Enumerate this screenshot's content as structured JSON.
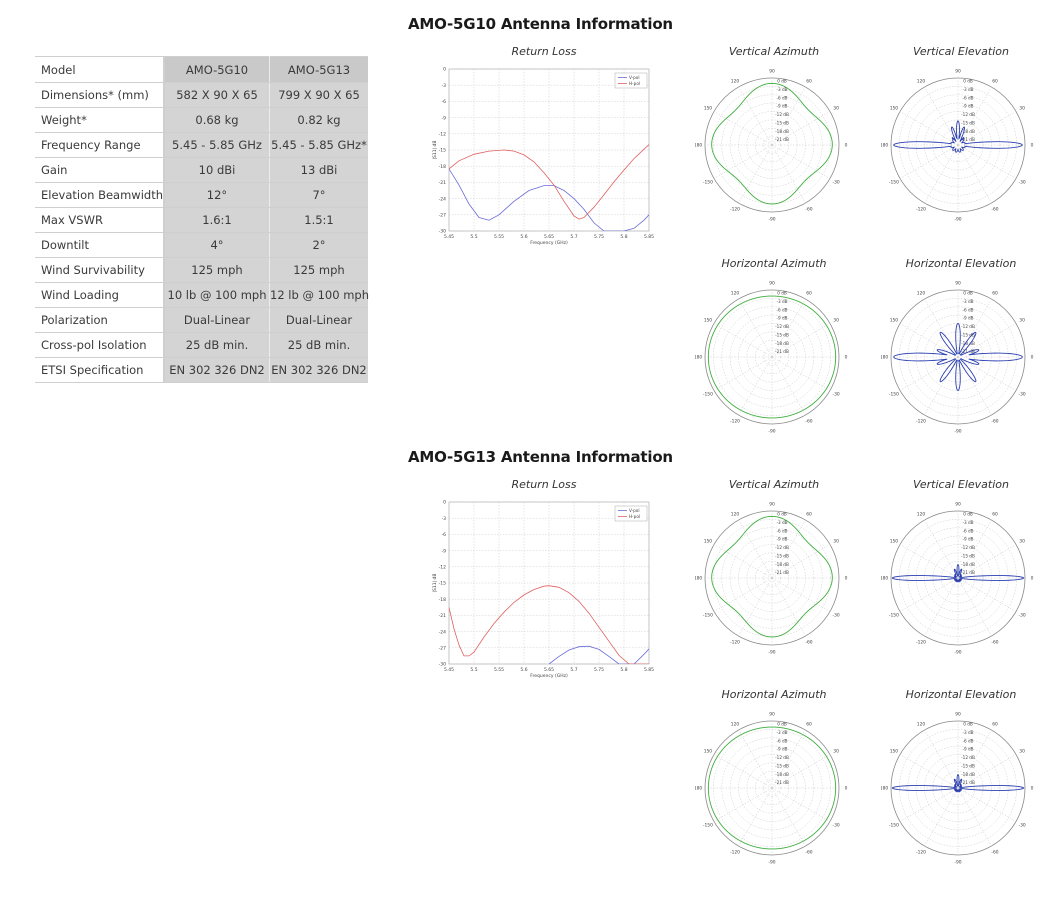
{
  "spec_table": {
    "rows": [
      [
        "Model",
        "AMO-5G10",
        "AMO-5G13"
      ],
      [
        "Dimensions* (mm)",
        "582 X 90 X 65",
        "799 X 90 X 65"
      ],
      [
        "Weight*",
        "0.68 kg",
        "0.82 kg"
      ],
      [
        "Frequency Range",
        "5.45 - 5.85 GHz",
        "5.45 - 5.85 GHz*"
      ],
      [
        "Gain",
        "10 dBi",
        "13 dBi"
      ],
      [
        "Elevation Beamwidth",
        "12°",
        "7°"
      ],
      [
        "Max VSWR",
        "1.6:1",
        "1.5:1"
      ],
      [
        "Downtilt",
        "4°",
        "2°"
      ],
      [
        "Wind Survivability",
        "125 mph",
        "125 mph"
      ],
      [
        "Wind Loading",
        "10 lb @ 100 mph",
        "12 lb @ 100 mph"
      ],
      [
        "Polarization",
        "Dual-Linear",
        "Dual-Linear"
      ],
      [
        "Cross-pol Isolation",
        "25 dB min.",
        "25 dB min."
      ],
      [
        "ETSI Specification",
        "EN 302 326 DN2",
        "EN 302 326 DN2"
      ]
    ]
  },
  "sections": [
    {
      "heading": "AMO-5G10 Antenna Information",
      "titles": {
        "return_loss": "Return Loss",
        "vertical_azimuth": "Vertical Azimuth",
        "vertical_elevation": "Vertical Elevation",
        "horizontal_azimuth": "Horizontal Azimuth",
        "horizontal_elevation": "Horizontal Elevation"
      }
    },
    {
      "heading": "AMO-5G13 Antenna Information",
      "titles": {
        "return_loss": "Return Loss",
        "vertical_azimuth": "Vertical Azimuth",
        "vertical_elevation": "Vertical Elevation",
        "horizontal_azimuth": "Horizontal Azimuth",
        "horizontal_elevation": "Horizontal Elevation"
      }
    }
  ],
  "chart_data": [
    {
      "id": "return-loss-5g10",
      "type": "line",
      "title": "Return Loss",
      "xlabel": "Frequency (GHz)",
      "ylabel": "|S11| dB",
      "xlim": [
        5.45,
        5.85
      ],
      "ylim": [
        -30,
        0
      ],
      "xticks": [
        "5.45",
        "5.5",
        "5.55",
        "5.6",
        "5.65",
        "5.7",
        "5.75",
        "5.8",
        "5.85"
      ],
      "yticks": [
        "0",
        "-3",
        "-6",
        "-9",
        "-12",
        "-15",
        "-18",
        "-21",
        "-24",
        "-27",
        "-30"
      ],
      "legend": [
        "V-pol",
        "H-pol"
      ],
      "series": [
        {
          "name": "V-pol",
          "color": "#6b6bd6",
          "x": [
            5.45,
            5.47,
            5.49,
            5.51,
            5.53,
            5.55,
            5.58,
            5.61,
            5.64,
            5.66,
            5.68,
            5.7,
            5.72,
            5.74,
            5.76,
            5.78,
            5.8,
            5.82,
            5.84,
            5.85
          ],
          "y": [
            -18.5,
            -21.5,
            -25,
            -27.5,
            -28,
            -27,
            -24.5,
            -22.5,
            -21.6,
            -21.6,
            -22.5,
            -24,
            -26,
            -28.5,
            -30,
            -30,
            -30,
            -29.5,
            -28,
            -27
          ]
        },
        {
          "name": "H-pol",
          "color": "#e06060",
          "x": [
            5.45,
            5.47,
            5.5,
            5.53,
            5.56,
            5.58,
            5.6,
            5.62,
            5.64,
            5.66,
            5.68,
            5.7,
            5.71,
            5.72,
            5.74,
            5.76,
            5.78,
            5.8,
            5.82,
            5.85
          ],
          "y": [
            -18.5,
            -17,
            -15.8,
            -15.2,
            -15,
            -15.2,
            -15.9,
            -17.2,
            -19.2,
            -21.5,
            -24.5,
            -27.2,
            -27.8,
            -27.5,
            -25.6,
            -23.3,
            -20.9,
            -18.7,
            -16.6,
            -14
          ]
        }
      ]
    },
    {
      "id": "return-loss-5g13",
      "type": "line",
      "title": "Return Loss",
      "xlabel": "Frequency (GHz)",
      "ylabel": "|S11| dB",
      "xlim": [
        5.45,
        5.85
      ],
      "ylim": [
        -30,
        0
      ],
      "xticks": [
        "5.45",
        "5.5",
        "5.55",
        "5.6",
        "5.65",
        "5.7",
        "5.75",
        "5.8",
        "5.85"
      ],
      "yticks": [
        "0",
        "-3",
        "-6",
        "-9",
        "-12",
        "-15",
        "-18",
        "-21",
        "-24",
        "-27",
        "-30"
      ],
      "legend": [
        "V-pol",
        "H-pol"
      ],
      "series": [
        {
          "name": "V-pol",
          "color": "#6b6bd6",
          "x": [
            5.65,
            5.67,
            5.69,
            5.71,
            5.73,
            5.75,
            5.77,
            5.79,
            5.8,
            5.82,
            5.84,
            5.85
          ],
          "y": [
            -30,
            -28.6,
            -27.4,
            -26.8,
            -26.7,
            -27.3,
            -28.6,
            -30,
            -30,
            -30,
            -28.2,
            -27.2
          ]
        },
        {
          "name": "H-pol",
          "color": "#e06060",
          "x": [
            5.45,
            5.46,
            5.47,
            5.48,
            5.49,
            5.5,
            5.52,
            5.54,
            5.56,
            5.58,
            5.6,
            5.62,
            5.64,
            5.65,
            5.67,
            5.69,
            5.71,
            5.73,
            5.75,
            5.77,
            5.79,
            5.81,
            5.83,
            5.85
          ],
          "y": [
            -19.5,
            -23.5,
            -26.5,
            -28.5,
            -28.5,
            -27.8,
            -25,
            -22.5,
            -20.4,
            -18.6,
            -17.2,
            -16.2,
            -15.6,
            -15.5,
            -15.8,
            -16.8,
            -18.4,
            -20.6,
            -23.2,
            -25.8,
            -28.4,
            -30,
            -30,
            -30
          ]
        }
      ]
    },
    {
      "id": "5g10-vertical-azimuth",
      "type": "polar",
      "title": "Vertical Azimuth",
      "color": "#3fae3f",
      "ticks": [
        "0 dB",
        "-3 dB",
        "-6 dB",
        "-9 dB",
        "-12 dB",
        "-15 dB",
        "-18 dB",
        "-21 dB"
      ],
      "angles": [
        "90",
        "60",
        "30",
        "0",
        "-30",
        "-60",
        "-90",
        "-120",
        "-150",
        "180",
        "150",
        "120"
      ],
      "pattern": "square"
    },
    {
      "id": "5g10-vertical-elevation",
      "type": "polar",
      "title": "Vertical Elevation",
      "color": "#2b3fb0",
      "ticks": [
        "0 dB",
        "-3 dB",
        "-6 dB",
        "-9 dB",
        "-12 dB",
        "-15 dB",
        "-18 dB",
        "-21 dB"
      ],
      "angles": [
        "90",
        "60",
        "30",
        "0",
        "-30",
        "-60",
        "-90",
        "-120",
        "-150",
        "180",
        "150",
        "120"
      ],
      "pattern": "elev-wide"
    },
    {
      "id": "5g10-horizontal-azimuth",
      "type": "polar",
      "title": "Horizontal Azimuth",
      "color": "#3fae3f",
      "ticks": [
        "0 dB",
        "-3 dB",
        "-6 dB",
        "-9 dB",
        "-12 dB",
        "-15 dB",
        "-18 dB",
        "-21 dB"
      ],
      "angles": [
        "90",
        "60",
        "30",
        "0",
        "-30",
        "-60",
        "-90",
        "-120",
        "-150",
        "180",
        "150",
        "120"
      ],
      "pattern": "circle"
    },
    {
      "id": "5g10-horizontal-elevation",
      "type": "polar",
      "title": "Horizontal Elevation",
      "color": "#2b3fb0",
      "ticks": [
        "0 dB",
        "-3 dB",
        "-6 dB",
        "-9 dB",
        "-12 dB",
        "-15 dB",
        "-18 dB",
        "-21 dB"
      ],
      "angles": [
        "90",
        "60",
        "30",
        "0",
        "-30",
        "-60",
        "-90",
        "-120",
        "-150",
        "180",
        "150",
        "120"
      ],
      "pattern": "elev-lobes"
    },
    {
      "id": "5g13-vertical-azimuth",
      "type": "polar",
      "title": "Vertical Azimuth",
      "color": "#3fae3f",
      "ticks": [
        "0 dB",
        "-3 dB",
        "-6 dB",
        "-9 dB",
        "-12 dB",
        "-15 dB",
        "-18 dB",
        "-21 dB"
      ],
      "angles": [
        "90",
        "60",
        "30",
        "0",
        "-30",
        "-60",
        "-90",
        "-120",
        "-150",
        "180",
        "150",
        "120"
      ],
      "pattern": "square"
    },
    {
      "id": "5g13-vertical-elevation",
      "type": "polar",
      "title": "Vertical Elevation",
      "color": "#2b3fb0",
      "ticks": [
        "0 dB",
        "-3 dB",
        "-6 dB",
        "-9 dB",
        "-12 dB",
        "-15 dB",
        "-18 dB",
        "-21 dB"
      ],
      "angles": [
        "90",
        "60",
        "30",
        "0",
        "-30",
        "-60",
        "-90",
        "-120",
        "-150",
        "180",
        "150",
        "120"
      ],
      "pattern": "elev-narrow"
    },
    {
      "id": "5g13-horizontal-azimuth",
      "type": "polar",
      "title": "Horizontal Azimuth",
      "color": "#3fae3f",
      "ticks": [
        "0 dB",
        "-3 dB",
        "-6 dB",
        "-9 dB",
        "-12 dB",
        "-15 dB",
        "-18 dB",
        "-21 dB"
      ],
      "angles": [
        "90",
        "60",
        "30",
        "0",
        "-30",
        "-60",
        "-90",
        "-120",
        "-150",
        "180",
        "150",
        "120"
      ],
      "pattern": "circle"
    },
    {
      "id": "5g13-horizontal-elevation",
      "type": "polar",
      "title": "Horizontal Elevation",
      "color": "#2b3fb0",
      "ticks": [
        "0 dB",
        "-3 dB",
        "-6 dB",
        "-9 dB",
        "-12 dB",
        "-15 dB",
        "-18 dB",
        "-21 dB"
      ],
      "angles": [
        "90",
        "60",
        "30",
        "0",
        "-30",
        "-60",
        "-90",
        "-120",
        "-150",
        "180",
        "150",
        "120"
      ],
      "pattern": "elev-narrow"
    }
  ]
}
